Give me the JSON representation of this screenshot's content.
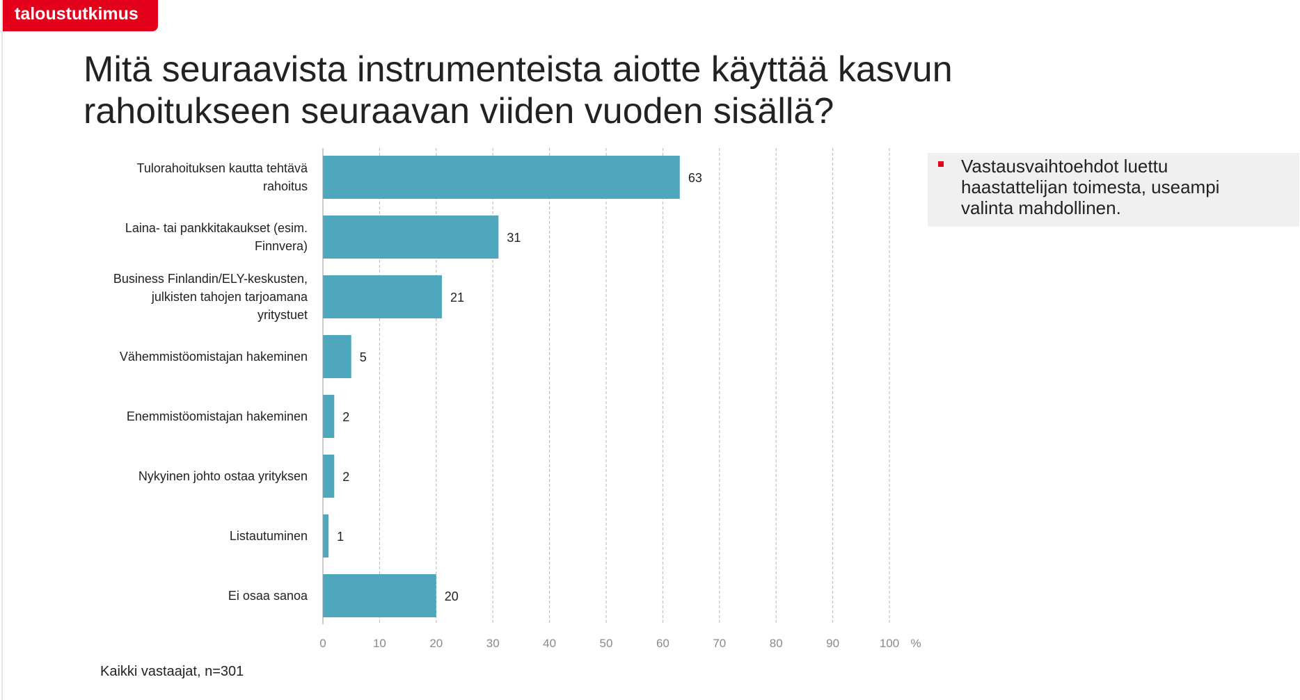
{
  "brand": "taloustutkimus",
  "title": "Mitä seuraavista instrumenteista aiotte käyttää kasvun rahoitukseen seuraavan viiden vuoden sisällä?",
  "note": "Vastausvaihtoehdot luettu haastattelijan toimesta, useampi valinta mahdollinen.",
  "footnote": "Kaikki vastaajat, n=301",
  "colors": {
    "bar": "#4ea7bc",
    "brand": "#e2001a",
    "grid": "#b5b5b5"
  },
  "chart_data": {
    "type": "bar",
    "orientation": "horizontal",
    "categories": [
      "Tulorahoituksen kautta tehtävä rahoitus",
      "Laina- tai pankkitakaukset (esim. Finnvera)",
      "Business Finlandin/ELY-keskusten, julkisten tahojen tarjoamana yritystuet",
      "Vähemmistöomistajan hakeminen",
      "Enemmistöomistajan hakeminen",
      "Nykyinen johto ostaa yrityksen",
      "Listautuminen",
      "Ei osaa sanoa"
    ],
    "category_lines": [
      [
        "Tulorahoituksen kautta tehtävä",
        "rahoitus"
      ],
      [
        "Laina- tai pankkitakaukset (esim.",
        "Finnvera)"
      ],
      [
        "Business Finlandin/ELY-keskusten,",
        "julkisten tahojen tarjoamana",
        "yritystuet"
      ],
      [
        "Vähemmistöomistajan hakeminen"
      ],
      [
        "Enemmistöomistajan hakeminen"
      ],
      [
        "Nykyinen johto ostaa yrityksen"
      ],
      [
        "Listautuminen"
      ],
      [
        "Ei osaa sanoa"
      ]
    ],
    "values": [
      63,
      31,
      21,
      5,
      2,
      2,
      1,
      20
    ],
    "xlim": [
      0,
      100
    ],
    "xticks": [
      0,
      10,
      20,
      30,
      40,
      50,
      60,
      70,
      80,
      90,
      100
    ],
    "x_unit": "%",
    "grid": "vertical dashed"
  }
}
